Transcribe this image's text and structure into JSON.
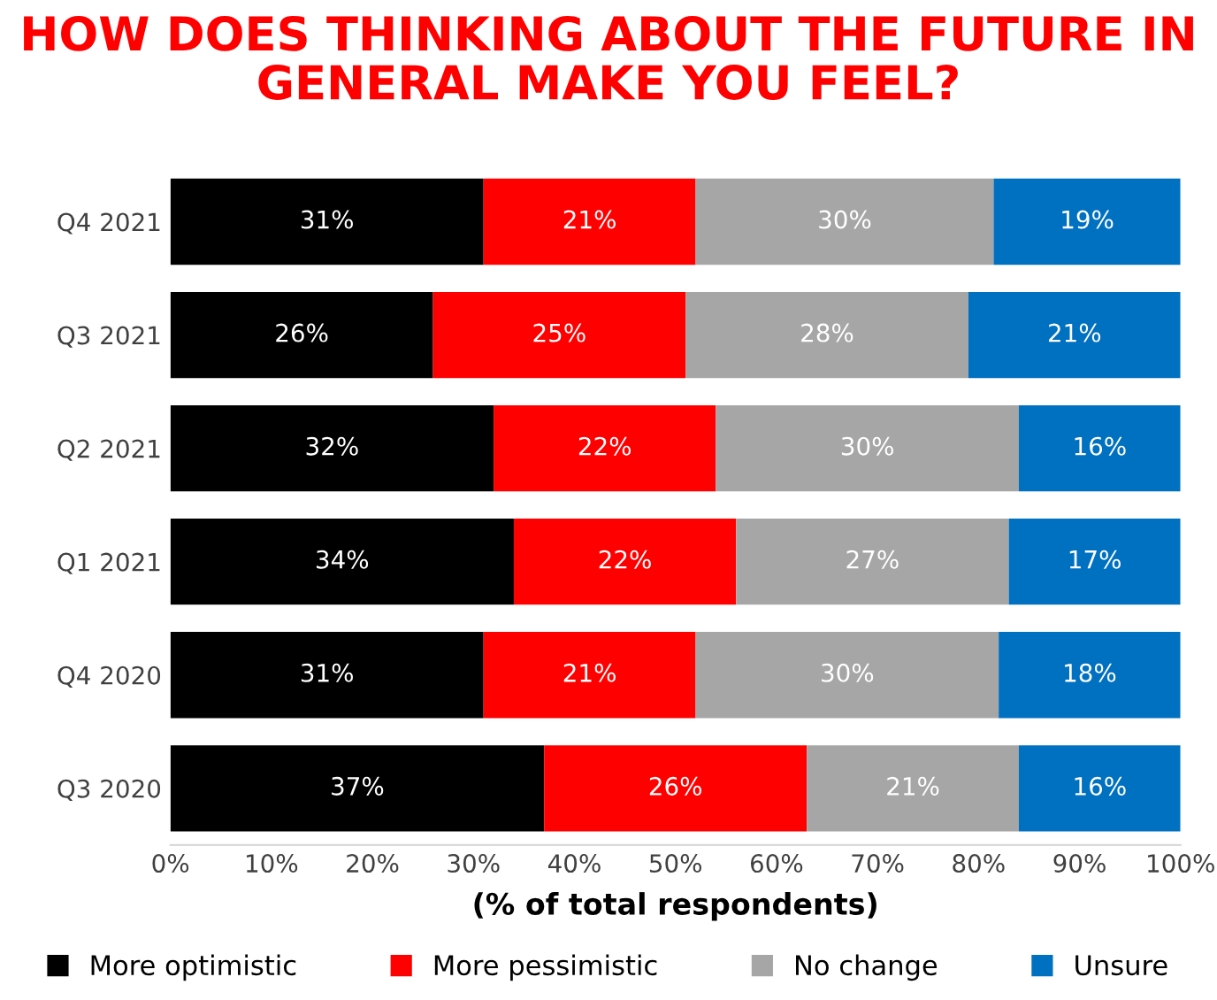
{
  "chart_data": {
    "type": "bar",
    "orientation": "horizontal",
    "stacked": true,
    "title": "HOW DOES THINKING ABOUT THE FUTURE IN\nGENERAL MAKE YOU FEEL?",
    "xlabel": "(% of total respondents)",
    "categories": [
      "Q4 2021",
      "Q3 2021",
      "Q2 2021",
      "Q1 2021",
      "Q4 2020",
      "Q3 2020"
    ],
    "series": [
      {
        "name": "More optimistic",
        "color": "#000000",
        "values": [
          31,
          26,
          32,
          34,
          31,
          37
        ],
        "value_labels": [
          "31%",
          "26%",
          "32%",
          "34%",
          "31%",
          "37%"
        ]
      },
      {
        "name": "More pessimistic",
        "color": "#ff0000",
        "values": [
          21,
          25,
          22,
          22,
          21,
          26
        ],
        "value_labels": [
          "21%",
          "25%",
          "22%",
          "22%",
          "21%",
          "26%"
        ]
      },
      {
        "name": "No change",
        "color": "#a6a6a6",
        "values": [
          29.5,
          28,
          30,
          27,
          30,
          21
        ],
        "value_labels": [
          "30%",
          "28%",
          "30%",
          "27%",
          "30%",
          "21%"
        ]
      },
      {
        "name": "Unsure",
        "color": "#0070c0",
        "values": [
          18.5,
          21,
          16,
          17,
          18,
          16
        ],
        "value_labels": [
          "19%",
          "21%",
          "16%",
          "17%",
          "18%",
          "16%"
        ]
      }
    ],
    "xlim": [
      0,
      100
    ],
    "xticks": [
      {
        "value": 0,
        "label": "0%"
      },
      {
        "value": 10,
        "label": "10%"
      },
      {
        "value": 20,
        "label": "20%"
      },
      {
        "value": 30,
        "label": "30%"
      },
      {
        "value": 40,
        "label": "40%"
      },
      {
        "value": 50,
        "label": "50%"
      },
      {
        "value": 60,
        "label": "60%"
      },
      {
        "value": 70,
        "label": "70%"
      },
      {
        "value": 80,
        "label": "80%"
      },
      {
        "value": 90,
        "label": "90%"
      },
      {
        "value": 100,
        "label": "100%"
      }
    ],
    "grid": false,
    "legend": "bottom"
  }
}
